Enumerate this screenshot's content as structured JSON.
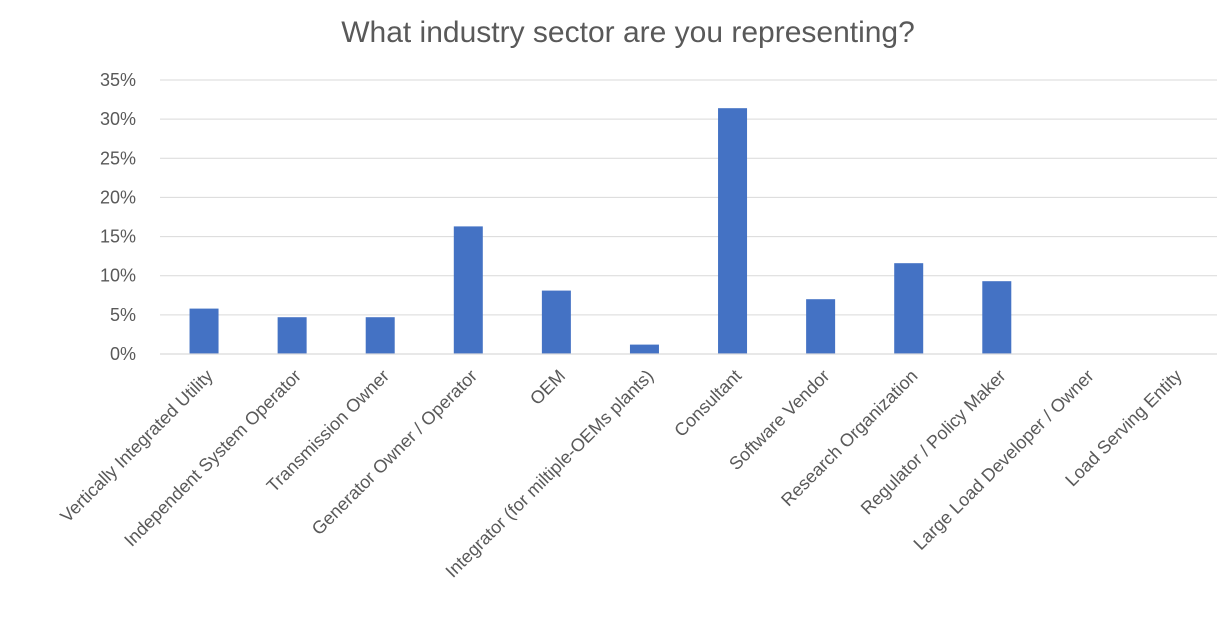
{
  "chart_data": {
    "type": "bar",
    "title": "What industry sector are you representing?",
    "xlabel": "",
    "ylabel": "",
    "ylim": [
      0,
      0.35
    ],
    "yticks": [
      0,
      0.05,
      0.1,
      0.15,
      0.2,
      0.25,
      0.3,
      0.35
    ],
    "ytick_labels": [
      "0%",
      "5%",
      "10%",
      "15%",
      "20%",
      "25%",
      "30%",
      "35%"
    ],
    "grid": true,
    "legend": "none",
    "bar_color": "#4472C4",
    "categories": [
      "Vertically Integrated Utility",
      "Independent System Operator",
      "Transmission Owner",
      "Generator Owner / Operator",
      "OEM",
      "Integrator (for miltiple-OEMs plants)",
      "Consultant",
      "Software Vendor",
      "Research Organization",
      "Regulator / Policy Maker",
      "Large Load Developer / Owner",
      "Load Serving Entity"
    ],
    "values": [
      0.058,
      0.047,
      0.047,
      0.163,
      0.081,
      0.012,
      0.314,
      0.07,
      0.116,
      0.093,
      0,
      0
    ]
  }
}
